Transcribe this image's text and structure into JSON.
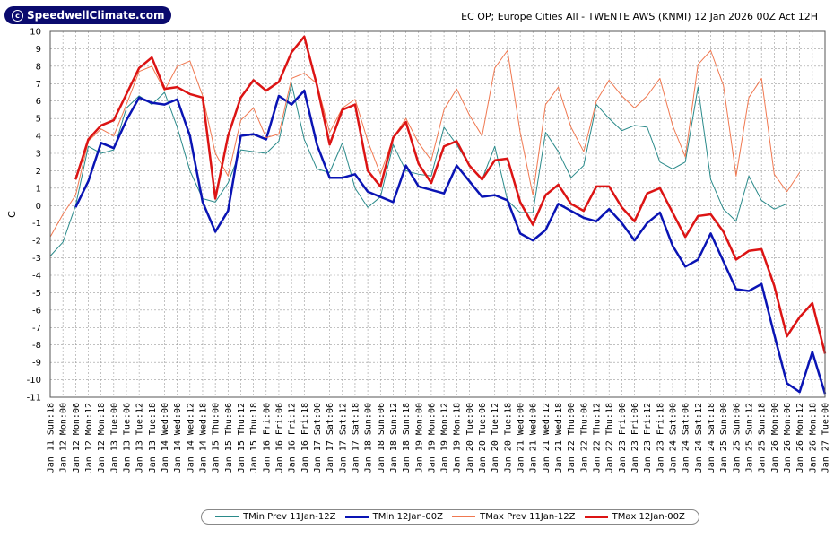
{
  "brand": {
    "logo_text": "SpeedwellClimate.com"
  },
  "header": {
    "title": "EC OP; Europe Cities All - TWENTE AWS (KNMI) 12 Jan 2026 00Z Act 12H"
  },
  "chart_data": {
    "type": "line",
    "ylabel": "C",
    "ylim": [
      -11,
      10
    ],
    "yticks": [
      10,
      9,
      8,
      7,
      6,
      5,
      4,
      3,
      2,
      1,
      0,
      -1,
      -2,
      -3,
      -4,
      -5,
      -6,
      -7,
      -8,
      -9,
      -10,
      -11
    ],
    "grid": true,
    "legend_position": "bottom",
    "categories": [
      "Jan 11 Sun:18",
      "Jan 12 Mon:00",
      "Jan 12 Mon:06",
      "Jan 12 Mon:12",
      "Jan 12 Mon:18",
      "Jan 13 Tue:00",
      "Jan 13 Tue:06",
      "Jan 13 Tue:12",
      "Jan 13 Tue:18",
      "Jan 14 Wed:00",
      "Jan 14 Wed:06",
      "Jan 14 Wed:12",
      "Jan 14 Wed:18",
      "Jan 15 Thu:00",
      "Jan 15 Thu:06",
      "Jan 15 Thu:12",
      "Jan 15 Thu:18",
      "Jan 16 Fri:00",
      "Jan 16 Fri:06",
      "Jan 16 Fri:12",
      "Jan 16 Fri:18",
      "Jan 17 Sat:00",
      "Jan 17 Sat:06",
      "Jan 17 Sat:12",
      "Jan 17 Sat:18",
      "Jan 18 Sun:00",
      "Jan 18 Sun:06",
      "Jan 18 Sun:12",
      "Jan 18 Sun:18",
      "Jan 19 Mon:00",
      "Jan 19 Mon:06",
      "Jan 19 Mon:12",
      "Jan 19 Mon:18",
      "Jan 20 Tue:00",
      "Jan 20 Tue:06",
      "Jan 20 Tue:12",
      "Jan 20 Tue:18",
      "Jan 21 Wed:00",
      "Jan 21 Wed:06",
      "Jan 21 Wed:12",
      "Jan 21 Wed:18",
      "Jan 22 Thu:00",
      "Jan 22 Thu:06",
      "Jan 22 Thu:12",
      "Jan 22 Thu:18",
      "Jan 23 Fri:00",
      "Jan 23 Fri:06",
      "Jan 23 Fri:12",
      "Jan 23 Fri:18",
      "Jan 24 Sat:00",
      "Jan 24 Sat:06",
      "Jan 24 Sat:12",
      "Jan 24 Sat:18",
      "Jan 25 Sun:00",
      "Jan 25 Sun:06",
      "Jan 25 Sun:12",
      "Jan 25 Sun:18",
      "Jan 26 Mon:00",
      "Jan 26 Mon:06",
      "Jan 26 Mon:12",
      "Jan 26 Mon:18",
      "Jan 27 Tue:00"
    ],
    "series": [
      {
        "name": "TMin Prev 11Jan-12Z",
        "color": "#2a8a8a",
        "width": 1,
        "values": [
          -2.9,
          -2.1,
          0,
          3.4,
          3.0,
          3.2,
          5.6,
          6.3,
          5.8,
          6.5,
          4.5,
          2.0,
          0.4,
          0.2,
          1.3,
          3.2,
          3.1,
          3.0,
          3.7,
          7.0,
          3.8,
          2.1,
          1.9,
          3.6,
          1.0,
          -0.1,
          0.5,
          3.5,
          2.0,
          1.8,
          1.7,
          4.5,
          3.5,
          2.3,
          1.5,
          3.4,
          0.3,
          -0.4,
          -0.4,
          4.2,
          3.1,
          1.6,
          2.3,
          5.8,
          5.0,
          4.3,
          4.6,
          4.5,
          2.5,
          2.1,
          2.5,
          6.8,
          1.5,
          -0.2,
          -0.9,
          1.7,
          0.3,
          -0.2,
          0.1,
          null,
          null,
          null
        ]
      },
      {
        "name": "TMin 12Jan-00Z",
        "color": "#0a14b4",
        "width": 2.5,
        "values": [
          null,
          null,
          -0.1,
          1.4,
          3.6,
          3.3,
          4.9,
          6.2,
          5.9,
          5.8,
          6.1,
          4.0,
          0.2,
          -1.5,
          -0.3,
          4.0,
          4.1,
          3.8,
          6.3,
          5.8,
          6.6,
          3.5,
          1.6,
          1.6,
          1.8,
          0.8,
          0.5,
          0.2,
          2.3,
          1.1,
          0.9,
          0.7,
          2.3,
          1.4,
          0.5,
          0.6,
          0.3,
          -1.6,
          -2.0,
          -1.4,
          0.1,
          -0.3,
          -0.7,
          -0.9,
          -0.2,
          -1.0,
          -2.0,
          -1.0,
          -0.4,
          -2.3,
          -3.5,
          -3.1,
          -1.6,
          -3.2,
          -4.8,
          -4.9,
          -4.5,
          -7.4,
          -10.2,
          -10.7,
          -8.4,
          -10.8
        ]
      },
      {
        "name": "TMax Prev 11Jan-12Z",
        "color": "#f07850",
        "width": 1,
        "values": [
          -1.8,
          -0.5,
          0.6,
          3.7,
          4.4,
          4.0,
          5.8,
          7.7,
          8.0,
          6.6,
          8.0,
          8.3,
          6.3,
          3.0,
          1.7,
          4.9,
          5.6,
          3.9,
          4.1,
          7.3,
          7.6,
          7.0,
          4.2,
          5.6,
          6.1,
          3.7,
          1.8,
          3.9,
          5.0,
          3.6,
          2.6,
          5.5,
          6.7,
          5.2,
          4.0,
          7.9,
          8.9,
          4.2,
          0.6,
          5.8,
          6.8,
          4.5,
          3.1,
          6.0,
          7.2,
          6.3,
          5.6,
          6.3,
          7.3,
          4.6,
          2.8,
          8.1,
          8.9,
          6.9,
          1.7,
          6.2,
          7.3,
          1.8,
          0.8,
          1.9,
          null,
          null
        ]
      },
      {
        "name": "TMax 12Jan-00Z",
        "color": "#dc1414",
        "width": 2.5,
        "values": [
          null,
          null,
          1.5,
          3.8,
          4.6,
          4.9,
          6.4,
          7.9,
          8.5,
          6.7,
          6.8,
          6.4,
          6.2,
          0.4,
          4.0,
          6.2,
          7.2,
          6.6,
          7.1,
          8.8,
          9.7,
          6.9,
          3.5,
          5.5,
          5.8,
          2.0,
          1.1,
          3.9,
          4.8,
          2.4,
          1.3,
          3.4,
          3.7,
          2.3,
          1.5,
          2.6,
          2.7,
          0.2,
          -1.1,
          0.6,
          1.2,
          0.1,
          -0.3,
          1.1,
          1.1,
          -0.1,
          -0.9,
          0.7,
          1.0,
          -0.4,
          -1.8,
          -0.6,
          -0.5,
          -1.5,
          -3.1,
          -2.6,
          -2.5,
          -4.6,
          -7.5,
          -6.4,
          -5.6,
          -8.5
        ]
      }
    ]
  }
}
